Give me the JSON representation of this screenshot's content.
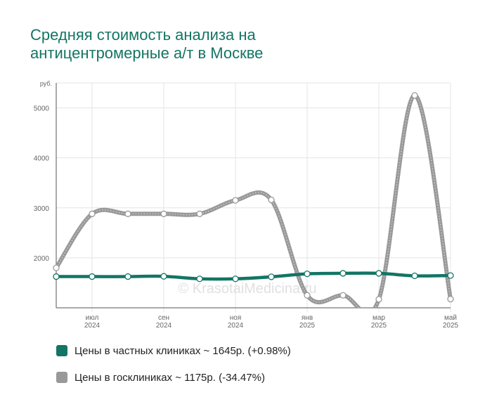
{
  "title_lines": [
    "Средняя стоимость анализа на",
    "антицентромерные а/т в Москве"
  ],
  "watermark": "© KrasotaiMedicina.ru",
  "colors": {
    "private": "#137564",
    "state": "#999999",
    "title": "#137564"
  },
  "legend": [
    {
      "key": "private",
      "label": "Цены в частных клиниках ~ 1645р. (+0.98%)"
    },
    {
      "key": "state",
      "label": "Цены в госклиниках ~ 1175р. (-34.47%)"
    }
  ],
  "chart_data": {
    "type": "line",
    "title": "Средняя стоимость анализа на антицентромерные а/т в Москве",
    "ylabel": "руб.",
    "ylim": [
      1000,
      5500
    ],
    "yticks": [
      2000,
      3000,
      4000,
      5000
    ],
    "grid": true,
    "legend_position": "bottom",
    "x": [
      "2024-06",
      "2024-07",
      "2024-08",
      "2024-09",
      "2024-10",
      "2024-11",
      "2024-12",
      "2025-01",
      "2025-02",
      "2025-03",
      "2025-04",
      "2025-05"
    ],
    "x_tick_labels": [
      {
        "x": "2024-07",
        "month": "июл",
        "year": "2024"
      },
      {
        "x": "2024-09",
        "month": "сен",
        "year": "2024"
      },
      {
        "x": "2024-11",
        "month": "ноя",
        "year": "2024"
      },
      {
        "x": "2025-01",
        "month": "янв",
        "year": "2025"
      },
      {
        "x": "2025-03",
        "month": "мар",
        "year": "2025"
      },
      {
        "x": "2025-05",
        "month": "май",
        "year": "2025"
      }
    ],
    "series": [
      {
        "key": "private",
        "name": "Цены в частных клиниках",
        "values": [
          1625,
          1625,
          1625,
          1630,
          1580,
          1580,
          1620,
          1680,
          1690,
          1690,
          1640,
          1645
        ]
      },
      {
        "key": "state",
        "name": "Цены в госклиниках",
        "values": [
          1800,
          2880,
          2880,
          2880,
          2880,
          3150,
          3160,
          1250,
          1250,
          1170,
          5250,
          1175
        ]
      }
    ]
  }
}
